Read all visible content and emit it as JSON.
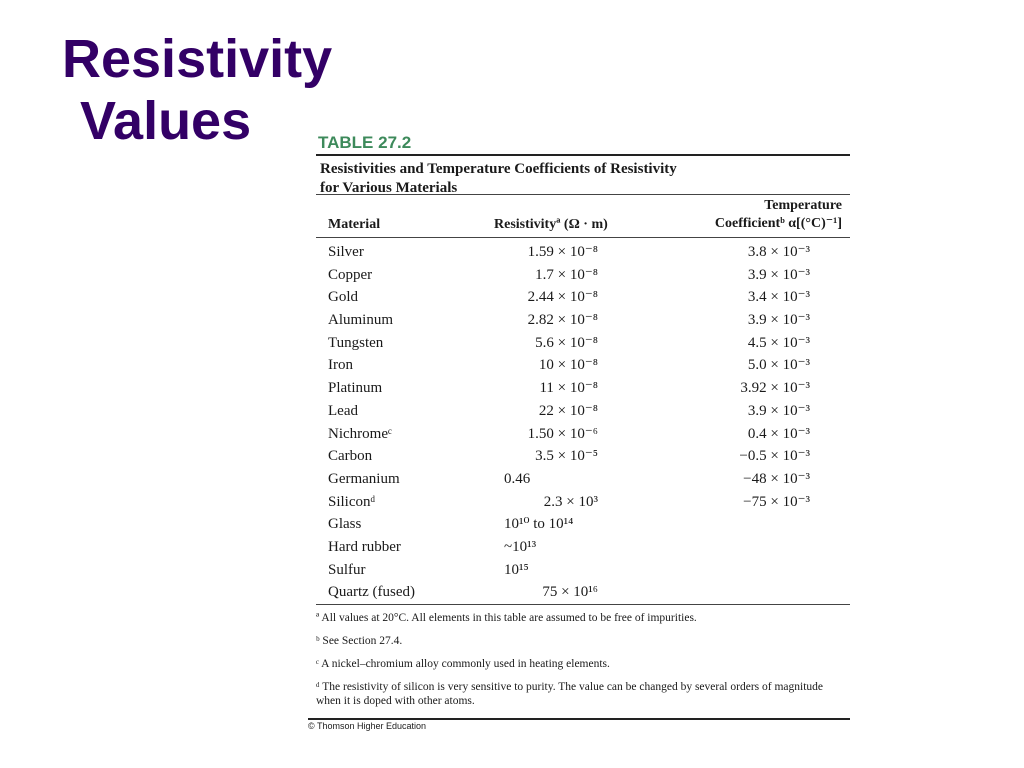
{
  "title": {
    "line1": "Resistivity",
    "line2": "Values"
  },
  "table": {
    "label": "TABLE 27.2",
    "caption_line1": "Resistivities and Temperature Coefficients of Resistivity",
    "caption_line2": "for Various Materials",
    "headers": {
      "material": "Material",
      "resistivity": "Resistivityª (Ω · m)",
      "coeff_line1": "Temperature",
      "coeff_line2": "Coefficientᵇ α[(°C)⁻¹]"
    },
    "rows": [
      {
        "material": "Silver",
        "resistivity": "1.59 × 10⁻⁸",
        "coefficient": "3.8 × 10⁻³"
      },
      {
        "material": "Copper",
        "resistivity": "1.7 × 10⁻⁸",
        "coefficient": "3.9 × 10⁻³"
      },
      {
        "material": "Gold",
        "resistivity": "2.44 × 10⁻⁸",
        "coefficient": "3.4 × 10⁻³"
      },
      {
        "material": "Aluminum",
        "resistivity": "2.82 × 10⁻⁸",
        "coefficient": "3.9 × 10⁻³"
      },
      {
        "material": "Tungsten",
        "resistivity": "5.6 × 10⁻⁸",
        "coefficient": "4.5 × 10⁻³"
      },
      {
        "material": "Iron",
        "resistivity": "10 × 10⁻⁸",
        "coefficient": "5.0 × 10⁻³"
      },
      {
        "material": "Platinum",
        "resistivity": "11 × 10⁻⁸",
        "coefficient": "3.92 × 10⁻³"
      },
      {
        "material": "Lead",
        "resistivity": "22 × 10⁻⁸",
        "coefficient": "3.9 × 10⁻³"
      },
      {
        "material": "Nichromeᶜ",
        "resistivity": "1.50 × 10⁻⁶",
        "coefficient": "0.4 × 10⁻³"
      },
      {
        "material": "Carbon",
        "resistivity": "3.5 × 10⁻⁵",
        "coefficient": "−0.5 × 10⁻³"
      },
      {
        "material": "Germanium",
        "resistivity": "0.46",
        "coefficient": "−48 × 10⁻³"
      },
      {
        "material": "Siliconᵈ",
        "resistivity": "2.3 × 10³",
        "coefficient": "−75 × 10⁻³"
      },
      {
        "material": "Glass",
        "resistivity": "10¹⁰ to 10¹⁴",
        "coefficient": ""
      },
      {
        "material": "Hard rubber",
        "resistivity": "~10¹³",
        "coefficient": ""
      },
      {
        "material": "Sulfur",
        "resistivity": "10¹⁵",
        "coefficient": ""
      },
      {
        "material": "Quartz (fused)",
        "resistivity": "75 × 10¹⁶",
        "coefficient": ""
      }
    ],
    "footnotes": [
      "ª All values at 20°C. All elements in this table are assumed to be free of impurities.",
      "ᵇ See Section 27.4.",
      "ᶜ A nickel–chromium alloy commonly used in heating elements.",
      "ᵈ The resistivity of silicon is very sensitive to purity. The value can be changed by several orders of magnitude when it is doped with other atoms."
    ],
    "credit": "© Thomson Higher Education"
  }
}
